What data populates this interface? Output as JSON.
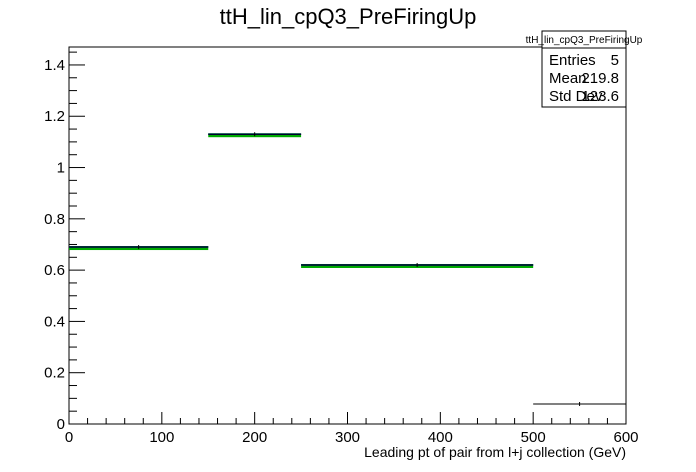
{
  "chart_data": {
    "type": "histogram",
    "title": "ttH_lin_cpQ3_PreFiringUp",
    "xlabel": "Leading pt of pair from l+j collection (GeV)",
    "ylabel": "",
    "xlim": [
      0,
      600
    ],
    "ylim": [
      0,
      1.47
    ],
    "x_ticks": [
      "0",
      "100",
      "200",
      "300",
      "400",
      "500",
      "600"
    ],
    "y_ticks": [
      "0",
      "0.2",
      "0.4",
      "0.6",
      "0.8",
      "1",
      "1.2",
      "1.4"
    ],
    "bins": [
      {
        "low": 0,
        "high": 150,
        "value": 0.69
      },
      {
        "low": 150,
        "high": 250,
        "value": 1.13
      },
      {
        "low": 250,
        "high": 500,
        "value": 0.62
      },
      {
        "low": 500,
        "high": 600,
        "value": 0.078
      }
    ],
    "colors": {
      "line": "#000000",
      "fill_band": "#00aa00",
      "marker": "#0000cc"
    },
    "stats_box": {
      "name": "ttH_lin_cpQ3_PreFiringUp",
      "rows": [
        {
          "label": "Entries",
          "value": "5"
        },
        {
          "label": "Mean",
          "value": "219.8"
        },
        {
          "label": "Std Dev",
          "value": "123.6"
        }
      ]
    },
    "grid": false
  }
}
